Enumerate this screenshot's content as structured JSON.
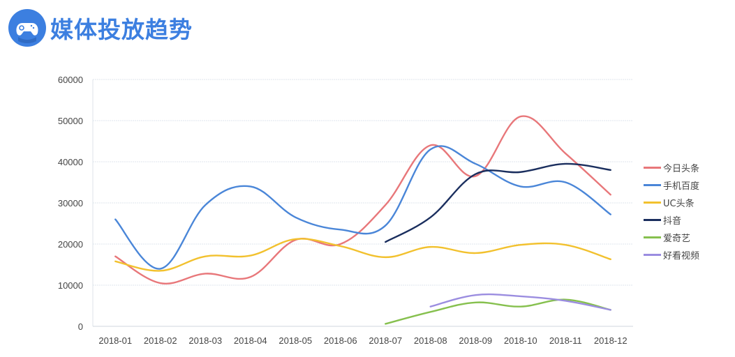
{
  "header": {
    "title": "媒体投放趋势",
    "icon": "gamepad-icon",
    "brand_color": "#3c7fe0"
  },
  "chart_data": {
    "type": "line",
    "title": "媒体投放趋势",
    "xlabel": "",
    "ylabel": "",
    "ylim": [
      0,
      60000
    ],
    "yticks": [
      0,
      10000,
      20000,
      30000,
      40000,
      50000,
      60000
    ],
    "grid": true,
    "smooth": true,
    "legend_position": "right",
    "categories": [
      "2018-01",
      "2018-02",
      "2018-03",
      "2018-04",
      "2018-05",
      "2018-06",
      "2018-07",
      "2018-08",
      "2018-09",
      "2018-10",
      "2018-11",
      "2018-12"
    ],
    "series": [
      {
        "name": "今日头条",
        "color": "#e8777a",
        "values": [
          17000,
          10500,
          12800,
          12000,
          21000,
          20000,
          29500,
          44000,
          36500,
          51000,
          42000,
          32000
        ]
      },
      {
        "name": "手机百度",
        "color": "#4a86d8",
        "values": [
          26000,
          14000,
          29500,
          34000,
          26500,
          23500,
          24500,
          43000,
          39500,
          34000,
          35000,
          27200
        ]
      },
      {
        "name": "UC头条",
        "color": "#f2c12e",
        "values": [
          15800,
          13500,
          17000,
          17200,
          21200,
          19500,
          16800,
          19300,
          17800,
          19800,
          19800,
          16300
        ]
      },
      {
        "name": "抖音",
        "color": "#1a2e5e",
        "values": [
          null,
          null,
          null,
          null,
          null,
          null,
          20500,
          26500,
          37000,
          37500,
          39500,
          38000
        ]
      },
      {
        "name": "爱奇艺",
        "color": "#86c04e",
        "values": [
          null,
          null,
          null,
          null,
          null,
          null,
          600,
          3500,
          5800,
          4800,
          6500,
          4000
        ]
      },
      {
        "name": "好看视频",
        "color": "#9b8de0",
        "values": [
          null,
          null,
          null,
          null,
          null,
          null,
          null,
          4800,
          7600,
          7300,
          6200,
          4000
        ]
      }
    ]
  }
}
